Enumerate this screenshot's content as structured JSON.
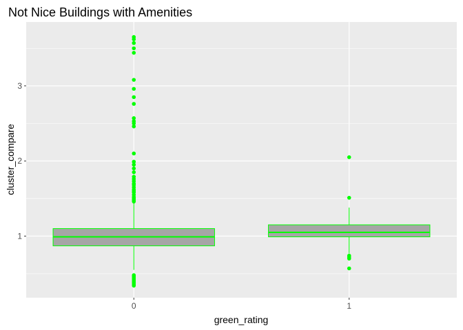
{
  "chart_data": {
    "type": "boxplot",
    "title": "Not Nice Buildings with Amenities",
    "xlabel": "green_rating",
    "ylabel": "cluster_compare",
    "categories": [
      "0",
      "1"
    ],
    "ylim": [
      0.18,
      3.85
    ],
    "yticks": [
      1,
      2,
      3
    ],
    "grid": true,
    "colors": {
      "panel": "#ebebeb",
      "grid": "#ffffff",
      "box_fill": "#a6a6a6",
      "outline": "#00ff00"
    },
    "boxes": [
      {
        "category": "0",
        "q1": 0.87,
        "median": 0.99,
        "q3": 1.1,
        "whisker_low": 0.55,
        "whisker_high": 1.44,
        "outliers": [
          0.34,
          0.36,
          0.38,
          0.4,
          0.42,
          0.44,
          0.46,
          0.48,
          1.46,
          1.48,
          1.5,
          1.52,
          1.55,
          1.58,
          1.6,
          1.62,
          1.65,
          1.68,
          1.7,
          1.73,
          1.76,
          1.79,
          1.85,
          1.9,
          1.95,
          1.99,
          2.1,
          2.46,
          2.5,
          2.53,
          2.57,
          2.76,
          2.85,
          2.96,
          3.08,
          3.44,
          3.5,
          3.57,
          3.62,
          3.65
        ]
      },
      {
        "category": "1",
        "q1": 0.99,
        "median": 1.05,
        "q3": 1.15,
        "whisker_low": 0.77,
        "whisker_high": 1.38,
        "outliers": [
          0.57,
          0.7,
          0.72,
          0.74,
          1.51,
          2.05
        ]
      }
    ]
  }
}
